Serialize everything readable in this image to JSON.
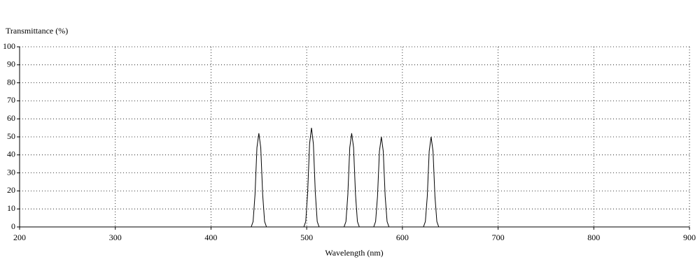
{
  "chart_data": {
    "type": "line",
    "y_label": "Transmittance (%)",
    "x_label": "Wavelength (nm)",
    "x": [
      200,
      442,
      444,
      446,
      448,
      450,
      452,
      454,
      456,
      458,
      497,
      499,
      501,
      503,
      505,
      507,
      509,
      511,
      513,
      539,
      541,
      543,
      545,
      547,
      549,
      551,
      553,
      555,
      570,
      572,
      574,
      576,
      578,
      580,
      582,
      584,
      586,
      622,
      624,
      626,
      628,
      630,
      632,
      634,
      636,
      638,
      900
    ],
    "series": [
      {
        "color": "#000000",
        "values": [
          0,
          0,
          3,
          18,
          44,
          52,
          44,
          18,
          3,
          0,
          0,
          3,
          19,
          46,
          55,
          46,
          19,
          3,
          0,
          0,
          3,
          18,
          44,
          52,
          44,
          18,
          3,
          0,
          0,
          3,
          17,
          42,
          50,
          42,
          17,
          3,
          0,
          0,
          3,
          17,
          42,
          50,
          42,
          17,
          3,
          0,
          0
        ]
      }
    ],
    "xlim": [
      200,
      900
    ],
    "xticks": [
      200,
      300,
      400,
      500,
      600,
      700,
      800,
      900
    ],
    "ylim": [
      0,
      100
    ],
    "yticks": [
      0,
      10,
      20,
      30,
      40,
      50,
      60,
      70,
      80,
      90,
      100
    ],
    "grid": true
  }
}
